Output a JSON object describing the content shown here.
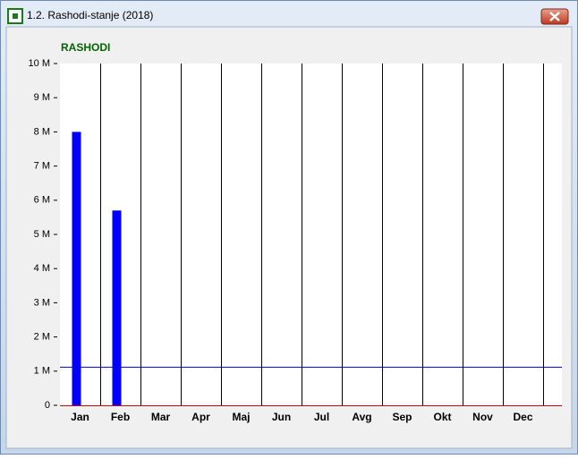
{
  "window": {
    "title": "1.2. Rashodi-stanje (2018)"
  },
  "chart_data": {
    "type": "bar",
    "title": "RASHODI",
    "categories": [
      "Jan",
      "Feb",
      "Mar",
      "Apr",
      "Maj",
      "Jun",
      "Jul",
      "Avg",
      "Sep",
      "Okt",
      "Nov",
      "Dec"
    ],
    "values": [
      8000000,
      5700000,
      null,
      null,
      null,
      null,
      null,
      null,
      null,
      null,
      null,
      null
    ],
    "color": "#0000ff",
    "ylim": [
      0,
      10000000
    ],
    "yticks": [
      {
        "value": 0,
        "label": "0"
      },
      {
        "value": 1000000,
        "label": "1 M"
      },
      {
        "value": 2000000,
        "label": "2 M"
      },
      {
        "value": 3000000,
        "label": "3 M"
      },
      {
        "value": 4000000,
        "label": "4 M"
      },
      {
        "value": 5000000,
        "label": "5 M"
      },
      {
        "value": 6000000,
        "label": "6 M"
      },
      {
        "value": 7000000,
        "label": "7 M"
      },
      {
        "value": 8000000,
        "label": "8 M"
      },
      {
        "value": 9000000,
        "label": "9 M"
      },
      {
        "value": 10000000,
        "label": "10 M"
      }
    ],
    "grid": true,
    "reference_line": {
      "value": 1130000,
      "color": "#0000cc"
    },
    "baseline_color": "#cc0000"
  }
}
